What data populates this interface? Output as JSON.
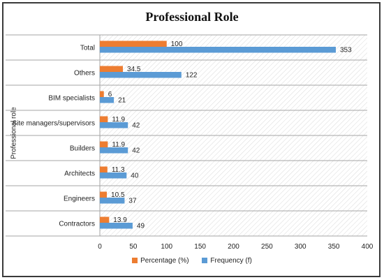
{
  "chart_data": {
    "type": "bar",
    "orientation": "horizontal",
    "title": "Professional Role",
    "ylabel": "Professional role",
    "xlabel": "",
    "xlim": [
      0,
      400
    ],
    "xticks": [
      0,
      50,
      100,
      150,
      200,
      250,
      300,
      350,
      400
    ],
    "grid": false,
    "legend_position": "bottom",
    "categories": [
      "Total",
      "Others",
      "BIM specialists",
      "Site managers/supervisors",
      "Builders",
      "Architects",
      "Engineers",
      "Contractors"
    ],
    "series": [
      {
        "name": "Percentage (%)",
        "color": "#ed7d31",
        "values": [
          100,
          34.5,
          6,
          11.9,
          11.9,
          11.3,
          10.5,
          13.9
        ],
        "labels": [
          "100",
          "34.5",
          "6",
          "11.9",
          "11.9",
          "11.3",
          "10.5",
          "13.9"
        ]
      },
      {
        "name": "Frequency (f)",
        "color": "#5b9bd5",
        "values": [
          353,
          122,
          21,
          42,
          42,
          40,
          37,
          49
        ],
        "labels": [
          "353",
          "122",
          "21",
          "42",
          "42",
          "40",
          "37",
          "49"
        ]
      }
    ]
  }
}
